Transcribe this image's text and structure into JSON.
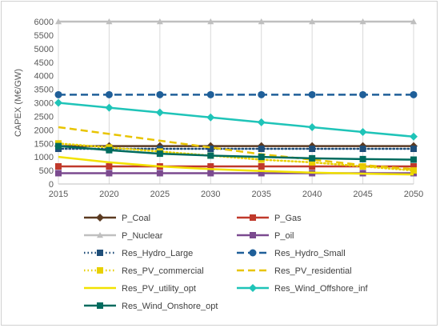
{
  "chart_data": {
    "type": "line",
    "title": "",
    "xlabel": "",
    "ylabel": "CAPEX (M€/GW)",
    "x": [
      2015,
      2020,
      2025,
      2030,
      2035,
      2040,
      2045,
      2050
    ],
    "xlim": [
      2015,
      2050
    ],
    "ylim": [
      0,
      6000
    ],
    "yticks": [
      0,
      500,
      1000,
      1500,
      2000,
      2500,
      3000,
      3500,
      4000,
      4500,
      5000,
      5500,
      6000
    ],
    "grid": "vertical",
    "legend_position": "bottom",
    "series": [
      {
        "name": "P_Coal",
        "color": "#5b3a21",
        "dash": "solid",
        "marker": "diamond",
        "values": [
          1400,
          1400,
          1400,
          1400,
          1400,
          1400,
          1400,
          1400
        ]
      },
      {
        "name": "P_Gas",
        "color": "#c0392b",
        "dash": "solid",
        "marker": "square",
        "values": [
          650,
          650,
          650,
          650,
          650,
          650,
          650,
          650
        ]
      },
      {
        "name": "P_Nuclear",
        "color": "#bfbfbf",
        "dash": "solid",
        "marker": "triangle",
        "values": [
          6000,
          6000,
          6000,
          6000,
          6000,
          6000,
          6000,
          6000
        ]
      },
      {
        "name": "P_oil",
        "color": "#7b4a8f",
        "dash": "solid",
        "marker": "square",
        "values": [
          400,
          400,
          400,
          400,
          400,
          400,
          400,
          400
        ]
      },
      {
        "name": "Res_Hydro_Large",
        "color": "#1f4e79",
        "dash": "dotted",
        "marker": "square",
        "values": [
          1300,
          1300,
          1300,
          1300,
          1300,
          1300,
          1300,
          1300
        ]
      },
      {
        "name": "Res_Hydro_Small",
        "color": "#1f5f99",
        "dash": "dashed",
        "marker": "circle",
        "values": [
          3300,
          3300,
          3300,
          3300,
          3300,
          3300,
          3300,
          3300
        ]
      },
      {
        "name": "Res_PV_commercial",
        "color": "#e8d000",
        "dash": "dotted",
        "marker": "square",
        "values": [
          1500,
          1350,
          1200,
          1050,
          900,
          800,
          650,
          500
        ]
      },
      {
        "name": "Res_PV_residential",
        "color": "#e8c400",
        "dash": "dashed",
        "marker": "none",
        "values": [
          2100,
          1850,
          1600,
          1350,
          1100,
          900,
          700,
          550
        ]
      },
      {
        "name": "Res_PV_utility_opt",
        "color": "#f2e200",
        "dash": "solid",
        "marker": "none",
        "values": [
          1000,
          800,
          650,
          550,
          480,
          420,
          380,
          350
        ]
      },
      {
        "name": "Res_Wind_Offshore_inf",
        "color": "#1fc4b8",
        "dash": "solid",
        "marker": "diamond",
        "values": [
          3000,
          2820,
          2640,
          2460,
          2280,
          2100,
          1920,
          1750
        ]
      },
      {
        "name": "Res_Wind_Onshore_opt",
        "color": "#006b5e",
        "dash": "solid",
        "marker": "square",
        "values": [
          1400,
          1250,
          1120,
          1050,
          1000,
          950,
          920,
          900
        ]
      }
    ]
  }
}
